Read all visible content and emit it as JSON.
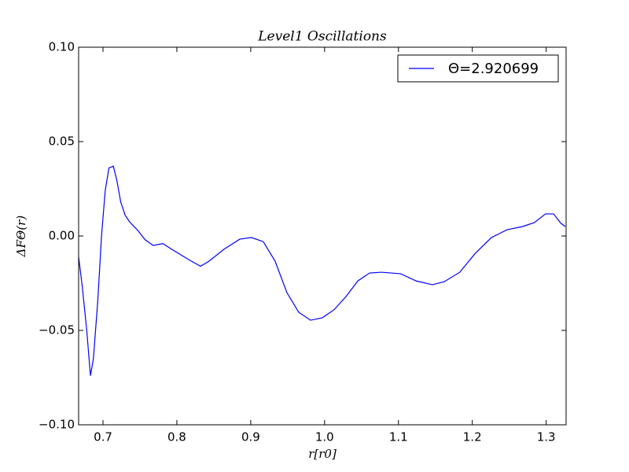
{
  "chart_data": {
    "type": "line",
    "title": "Level1 Oscillations",
    "x_label": "r[r0]",
    "y_label": "ΔFΘ(r)",
    "x": [
      0.667,
      0.672,
      0.678,
      0.683,
      0.687,
      0.693,
      0.698,
      0.703,
      0.708,
      0.714,
      0.719,
      0.724,
      0.73,
      0.736,
      0.747,
      0.757,
      0.768,
      0.781,
      0.795,
      0.816,
      0.832,
      0.843,
      0.864,
      0.885,
      0.901,
      0.917,
      0.933,
      0.949,
      0.965,
      0.981,
      0.997,
      1.013,
      1.029,
      1.045,
      1.061,
      1.077,
      1.103,
      1.124,
      1.146,
      1.162,
      1.183,
      1.204,
      1.226,
      1.247,
      1.268,
      1.284,
      1.299,
      1.31,
      1.32,
      1.326
    ],
    "series": [
      {
        "name": "Θ=2.920699",
        "color": "#0000ff",
        "values": [
          -0.011,
          -0.027,
          -0.05,
          -0.074,
          -0.065,
          -0.034,
          0.0,
          0.024,
          0.036,
          0.037,
          0.029,
          0.018,
          0.011,
          0.0075,
          0.003,
          -0.002,
          -0.005,
          -0.004,
          -0.0075,
          -0.0125,
          -0.016,
          -0.0135,
          -0.007,
          -0.0017,
          -0.0008,
          -0.003,
          -0.0133,
          -0.03,
          -0.0404,
          -0.0446,
          -0.0433,
          -0.039,
          -0.0321,
          -0.0238,
          -0.0196,
          -0.0192,
          -0.02,
          -0.0238,
          -0.0258,
          -0.0242,
          -0.0192,
          -0.0092,
          -0.0008,
          0.0033,
          0.005,
          0.0071,
          0.0117,
          0.0117,
          0.0067,
          0.005
        ]
      }
    ],
    "xlim": [
      0.667,
      1.327
    ],
    "xticks": [
      {
        "value": 0.7,
        "label": "0.7"
      },
      {
        "value": 0.8,
        "label": "0.8"
      },
      {
        "value": 0.9,
        "label": "0.9"
      },
      {
        "value": 1.0,
        "label": "1.0"
      },
      {
        "value": 1.1,
        "label": "1.1"
      },
      {
        "value": 1.2,
        "label": "1.2"
      },
      {
        "value": 1.3,
        "label": "1.3"
      }
    ],
    "ylim": [
      -0.1,
      0.1
    ],
    "yticks": [
      {
        "value": -0.1,
        "label": "−0.10"
      },
      {
        "value": -0.05,
        "label": "−0.05"
      },
      {
        "value": 0,
        "label": "0.00"
      },
      {
        "value": 0.05,
        "label": "0.05"
      },
      {
        "value": 0.1,
        "label": "0.10"
      }
    ],
    "legend": "upper right",
    "grid": false
  }
}
